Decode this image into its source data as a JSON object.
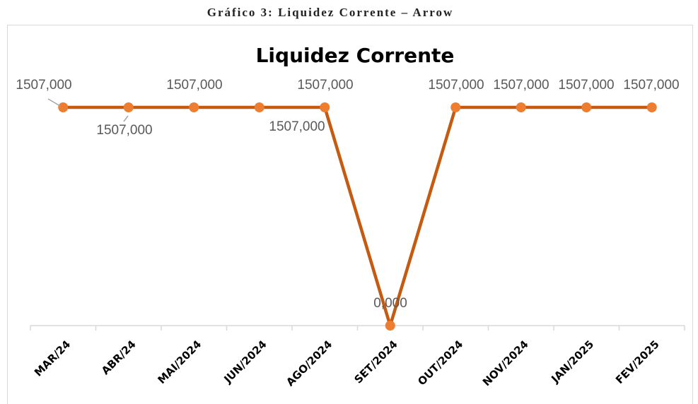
{
  "caption": "Gráfico 3: Liquidez Corrente – Arrow",
  "chart_data": {
    "type": "line",
    "title": "Liquidez Corrente",
    "categories": [
      "MAR/24",
      "ABR/24",
      "MAI/2024",
      "JUN/2024",
      "AGO/2024",
      "SET/2024",
      "OUT/2024",
      "NOV/2024",
      "JAN/2025",
      "FEV/2025"
    ],
    "series": [
      {
        "name": "Liquidez Corrente",
        "color": "#c55a11",
        "marker_color": "#ed7d31",
        "values": [
          1507,
          1507,
          1507,
          1507,
          1507,
          0,
          1507,
          1507,
          1507,
          1507
        ],
        "value_labels": [
          "1507,000",
          "1507,000",
          "1507,000",
          "1507,000",
          "1507,000",
          "0,000",
          "1507,000",
          "1507,000",
          "1507,000",
          "1507,000"
        ]
      }
    ]
  }
}
